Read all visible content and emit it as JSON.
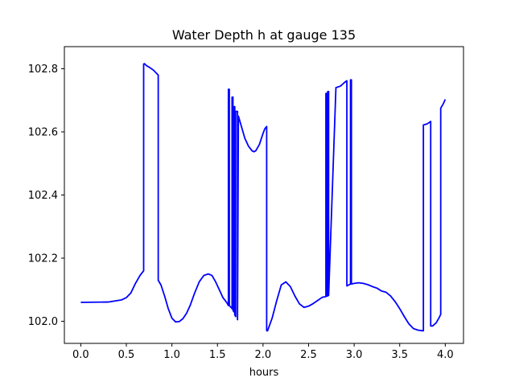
{
  "chart_data": {
    "type": "line",
    "title": "Water Depth h at gauge 135",
    "xlabel": "hours",
    "ylabel": "",
    "xlim": [
      -0.18,
      4.2
    ],
    "ylim": [
      101.93,
      102.87
    ],
    "xticks": [
      0.0,
      0.5,
      1.0,
      1.5,
      2.0,
      2.5,
      3.0,
      3.5,
      4.0
    ],
    "xtick_labels": [
      "0.0",
      "0.5",
      "1.0",
      "1.5",
      "2.0",
      "2.5",
      "3.0",
      "3.5",
      "4.0"
    ],
    "yticks": [
      102.0,
      102.2,
      102.4,
      102.6,
      102.8
    ],
    "ytick_labels": [
      "102.0",
      "102.2",
      "102.4",
      "102.6",
      "102.8"
    ],
    "grid": false,
    "legend": "none",
    "series": [
      {
        "color": "#0000ff",
        "x": [
          0.0,
          0.3,
          0.45,
          0.5,
          0.55,
          0.6,
          0.65,
          0.69,
          0.69,
          0.7,
          0.72,
          0.75,
          0.8,
          0.85,
          0.85,
          0.88,
          0.92,
          0.96,
          1.0,
          1.04,
          1.08,
          1.12,
          1.16,
          1.2,
          1.25,
          1.3,
          1.35,
          1.4,
          1.44,
          1.48,
          1.52,
          1.56,
          1.6,
          1.62,
          1.62,
          1.63,
          1.63,
          1.66,
          1.66,
          1.67,
          1.67,
          1.68,
          1.68,
          1.69,
          1.69,
          1.7,
          1.7,
          1.72,
          1.72,
          1.73,
          1.76,
          1.8,
          1.84,
          1.88,
          1.9,
          1.92,
          1.96,
          2.0,
          2.02,
          2.04,
          2.04,
          2.05,
          2.1,
          2.15,
          2.2,
          2.25,
          2.3,
          2.35,
          2.4,
          2.45,
          2.5,
          2.55,
          2.6,
          2.65,
          2.69,
          2.69,
          2.7,
          2.7,
          2.71,
          2.71,
          2.72,
          2.72,
          2.8,
          2.85,
          2.9,
          2.92,
          2.92,
          2.96,
          2.96,
          2.97,
          2.97,
          3.0,
          3.05,
          3.1,
          3.15,
          3.2,
          3.25,
          3.3,
          3.35,
          3.4,
          3.45,
          3.5,
          3.55,
          3.6,
          3.65,
          3.7,
          3.75,
          3.76,
          3.76,
          3.8,
          3.84,
          3.84,
          3.86,
          3.9,
          3.93,
          3.95,
          3.95,
          3.98,
          4.0
        ],
        "y": [
          102.06,
          102.061,
          102.068,
          102.075,
          102.09,
          102.12,
          102.145,
          102.16,
          102.815,
          102.816,
          102.81,
          102.805,
          102.795,
          102.78,
          102.13,
          102.115,
          102.08,
          102.04,
          102.01,
          101.998,
          101.999,
          102.008,
          102.025,
          102.05,
          102.09,
          102.125,
          102.145,
          102.15,
          102.145,
          102.125,
          102.1,
          102.075,
          102.06,
          102.05,
          102.735,
          102.735,
          102.05,
          102.04,
          102.71,
          102.71,
          102.035,
          102.03,
          102.68,
          102.68,
          102.02,
          102.015,
          102.665,
          102.665,
          102.005,
          102.65,
          102.62,
          102.58,
          102.555,
          102.54,
          102.537,
          102.54,
          102.56,
          102.595,
          102.61,
          102.617,
          101.97,
          101.97,
          102.01,
          102.065,
          102.115,
          102.125,
          102.11,
          102.08,
          102.055,
          102.044,
          102.048,
          102.056,
          102.066,
          102.076,
          102.078,
          102.722,
          102.722,
          102.08,
          102.08,
          102.728,
          102.728,
          102.082,
          102.74,
          102.745,
          102.758,
          102.762,
          102.112,
          102.118,
          102.765,
          102.765,
          102.118,
          102.12,
          102.122,
          102.12,
          102.116,
          102.11,
          102.105,
          102.096,
          102.092,
          102.08,
          102.062,
          102.04,
          102.015,
          101.992,
          101.977,
          101.972,
          101.97,
          101.97,
          102.622,
          102.625,
          102.633,
          101.985,
          101.985,
          101.995,
          102.01,
          102.022,
          102.675,
          102.69,
          102.703
        ]
      }
    ]
  }
}
